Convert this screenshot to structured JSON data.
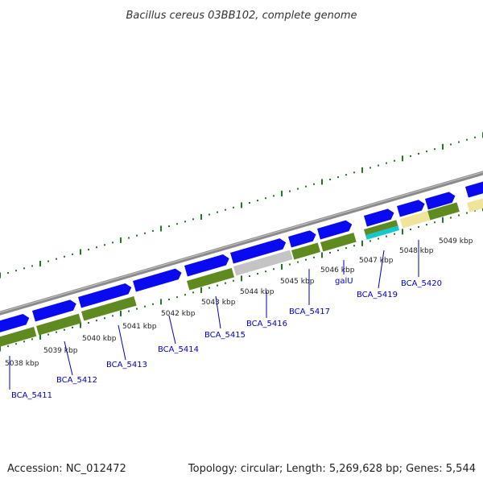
{
  "title": "Bacillus cereus 03BB102, complete genome",
  "accession": "Accession: NC_012472",
  "summary": "Topology: circular; Length: 5,269,628 bp; Genes: 5,544",
  "colors": {
    "forward_cds": "#0a0af0",
    "backbone": "#8a8a8a",
    "feature_green": "#5f8a1f",
    "feature_grey": "#c4c4c4",
    "feature_cyan": "#17c7cc",
    "feature_yellow": "#efe59a",
    "ticks": "#1d7a1d",
    "gene_label": "#0000c8"
  },
  "kbp_labels": [
    "5038 kbp",
    "5039 kbp",
    "5040 kbp",
    "5041 kbp",
    "5042 kbp",
    "5043 kbp",
    "5044 kbp",
    "5045 kbp",
    "5046 kbp",
    "5047 kbp",
    "5048 kbp",
    "5049 kbp"
  ],
  "gene_labels": [
    "BCA_5411",
    "BCA_5412",
    "BCA_5413",
    "BCA_5414",
    "BCA_5415",
    "BCA_5416",
    "BCA_5417",
    "galU",
    "BCA_5419",
    "BCA_5420"
  ]
}
